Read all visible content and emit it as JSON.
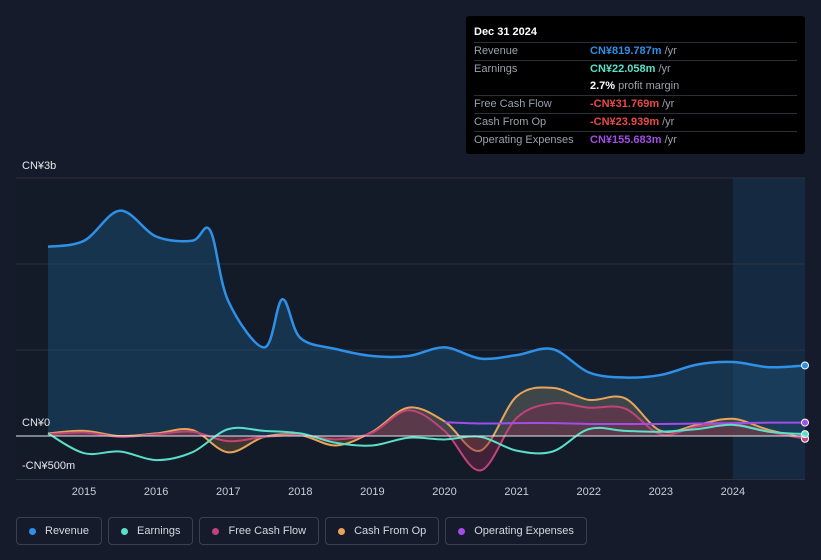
{
  "tooltip": {
    "date": "Dec 31 2024",
    "rows": [
      {
        "label": "Revenue",
        "value": "CN¥819.787m",
        "unit": "/yr",
        "color": "#2e90e6"
      },
      {
        "label": "Earnings",
        "value": "CN¥22.058m",
        "unit": "/yr",
        "color": "#5ae0c8"
      },
      {
        "label": "",
        "value": "2.7%",
        "unit": "profit margin",
        "color": "#ffffff"
      },
      {
        "label": "Free Cash Flow",
        "value": "-CN¥31.769m",
        "unit": "/yr",
        "color": "#e84a4a"
      },
      {
        "label": "Cash From Op",
        "value": "-CN¥23.939m",
        "unit": "/yr",
        "color": "#e84a4a"
      },
      {
        "label": "Operating Expenses",
        "value": "CN¥155.683m",
        "unit": "/yr",
        "color": "#a34de8"
      }
    ]
  },
  "chart_data": {
    "type": "line",
    "title": "",
    "ylabel": "",
    "ylim": [
      -500,
      3000
    ],
    "y_ticks": [
      {
        "value": 3000,
        "label": "CN¥3b"
      },
      {
        "value": 0,
        "label": "CN¥0"
      },
      {
        "value": -500,
        "label": "-CN¥500m"
      }
    ],
    "x_ticks": [
      "2015",
      "2016",
      "2017",
      "2018",
      "2019",
      "2020",
      "2021",
      "2022",
      "2023",
      "2024"
    ],
    "xlim": [
      2014.5,
      2025.0
    ],
    "highlight_start": 2024.0,
    "series": [
      {
        "name": "Revenue",
        "color": "#2e90e6",
        "fill": true,
        "x": [
          2014.5,
          2015.0,
          2015.5,
          2016.0,
          2016.5,
          2016.75,
          2017.0,
          2017.5,
          2017.75,
          2018.0,
          2018.5,
          2019.0,
          2019.5,
          2020.0,
          2020.5,
          2021.0,
          2021.5,
          2022.0,
          2022.5,
          2023.0,
          2023.5,
          2024.0,
          2024.5,
          2025.0
        ],
        "values": [
          2200,
          2270,
          2620,
          2320,
          2270,
          2390,
          1570,
          1030,
          1590,
          1140,
          1010,
          930,
          930,
          1030,
          900,
          940,
          1010,
          740,
          680,
          710,
          830,
          860,
          800,
          820
        ]
      },
      {
        "name": "Earnings",
        "color": "#5ae0c8",
        "fill": false,
        "x": [
          2014.5,
          2015.0,
          2015.5,
          2016.0,
          2016.5,
          2017.0,
          2017.5,
          2018.0,
          2018.5,
          2019.0,
          2019.5,
          2020.0,
          2020.5,
          2021.0,
          2021.5,
          2022.0,
          2022.5,
          2023.0,
          2023.5,
          2024.0,
          2024.5,
          2025.0
        ],
        "values": [
          30,
          -200,
          -180,
          -280,
          -190,
          80,
          60,
          30,
          -80,
          -110,
          -20,
          -40,
          -10,
          -170,
          -180,
          80,
          60,
          50,
          80,
          130,
          50,
          22
        ]
      },
      {
        "name": "Free Cash Flow",
        "color": "#c0447a",
        "fill": true,
        "x": [
          2014.5,
          2015.0,
          2015.5,
          2016.0,
          2016.5,
          2017.0,
          2017.5,
          2018.0,
          2018.5,
          2019.0,
          2019.5,
          2020.0,
          2020.5,
          2021.0,
          2021.5,
          2022.0,
          2022.5,
          2023.0,
          2023.5,
          2024.0,
          2024.5,
          2025.0
        ],
        "values": [
          20,
          40,
          -10,
          20,
          50,
          -60,
          -10,
          10,
          -40,
          40,
          300,
          60,
          -400,
          210,
          380,
          330,
          320,
          20,
          110,
          140,
          50,
          -32
        ]
      },
      {
        "name": "Cash From Op",
        "color": "#e8a55a",
        "fill": true,
        "x": [
          2014.5,
          2015.0,
          2015.5,
          2016.0,
          2016.5,
          2017.0,
          2017.5,
          2018.0,
          2018.5,
          2019.0,
          2019.5,
          2020.0,
          2020.5,
          2021.0,
          2021.5,
          2022.0,
          2022.5,
          2023.0,
          2023.5,
          2024.0,
          2024.5,
          2025.0
        ],
        "values": [
          30,
          60,
          0,
          30,
          70,
          -190,
          -10,
          10,
          -110,
          50,
          330,
          170,
          -170,
          460,
          560,
          420,
          440,
          60,
          130,
          200,
          70,
          -24
        ]
      },
      {
        "name": "Operating Expenses",
        "color": "#a34de8",
        "fill": false,
        "x": [
          2020.0,
          2020.5,
          2021.0,
          2021.5,
          2022.0,
          2022.5,
          2023.0,
          2023.5,
          2024.0,
          2024.5,
          2025.0
        ],
        "values": [
          160,
          145,
          150,
          150,
          140,
          140,
          140,
          145,
          150,
          155,
          156
        ]
      }
    ]
  },
  "legend": [
    {
      "label": "Revenue",
      "color": "#2e90e6"
    },
    {
      "label": "Earnings",
      "color": "#5ae0c8"
    },
    {
      "label": "Free Cash Flow",
      "color": "#c0447a"
    },
    {
      "label": "Cash From Op",
      "color": "#e8a55a"
    },
    {
      "label": "Operating Expenses",
      "color": "#a34de8"
    }
  ]
}
